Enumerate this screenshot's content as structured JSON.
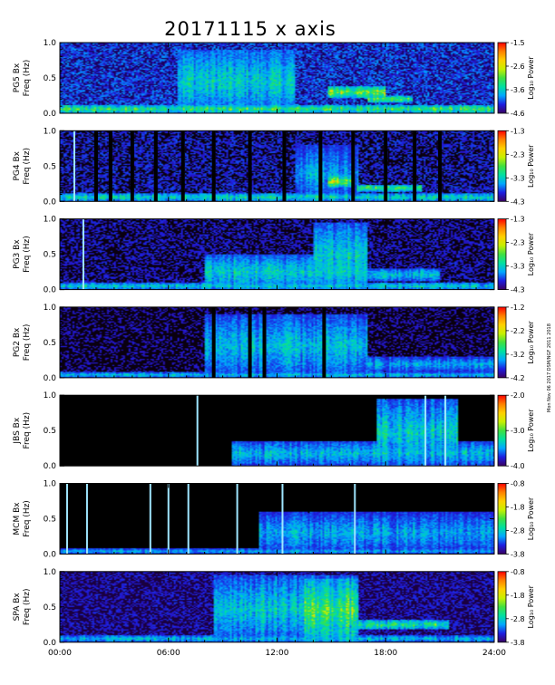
{
  "chart_data": {
    "type": "heatmap",
    "title": "20171115 x axis",
    "x_tick_labels": [
      "00:00",
      "06:00",
      "12:00",
      "18:00",
      "24:00"
    ],
    "x_ticks_hours": [
      0,
      6,
      12,
      18,
      24
    ],
    "xlim_hours": [
      0,
      24
    ],
    "colormap": [
      "#3a0060",
      "#1d1de0",
      "#00a8ff",
      "#00e0a0",
      "#40e040",
      "#c8f000",
      "#ffd000",
      "#ff8000",
      "#ff0000"
    ],
    "side_text": "Mon Nov 06 2017 DSM/NGF 2011 2018",
    "panels": [
      {
        "station": "PG5 Bx",
        "ylabel_line1": "PG5 Bx",
        "ylabel_line2": "Freq (Hz)",
        "ylim_hz": [
          0.0,
          1.0
        ],
        "y_tick_labels": [
          "0.0",
          "0.5",
          "1.0"
        ],
        "y_ticks_hz": [
          0.0,
          0.5,
          1.0
        ],
        "cbar_label": "Log₁₀ Power",
        "cbar_ticks": [
          "-1.5",
          "-2.6",
          "-3.6",
          "-4.6"
        ],
        "cbar_range": [
          -4.6,
          -1.5
        ],
        "background": "#1a0060",
        "base": 0.25,
        "gaps_hours": [],
        "bright_lines_hours": [],
        "bursts": [
          {
            "t0": 0,
            "t1": 24,
            "f0": 0.0,
            "f1": 0.12,
            "level": 0.6
          },
          {
            "t0": 6.5,
            "t1": 13,
            "f0": 0.0,
            "f1": 0.9,
            "level": 0.45
          },
          {
            "t0": 14.8,
            "t1": 18,
            "f0": 0.22,
            "f1": 0.38,
            "level": 0.75
          },
          {
            "t0": 17,
            "t1": 19.5,
            "f0": 0.15,
            "f1": 0.25,
            "level": 0.65
          }
        ]
      },
      {
        "station": "PG4 Bx",
        "ylabel_line1": "PG4 Bx",
        "ylabel_line2": "Freq (Hz)",
        "ylim_hz": [
          0.0,
          1.0
        ],
        "y_tick_labels": [
          "0.0",
          "0.5",
          "1.0"
        ],
        "y_ticks_hz": [
          0.0,
          0.5,
          1.0
        ],
        "cbar_label": "Log₁₀ Power",
        "cbar_ticks": [
          "-1.3",
          "-2.3",
          "-3.3",
          "-4.3"
        ],
        "cbar_range": [
          -4.3,
          -1.3
        ],
        "background": "#0a0010",
        "base": 0.18,
        "gaps_hours": [
          2.0,
          2.8,
          4.0,
          5.3,
          6.8,
          8.5,
          10.5,
          12.4,
          14.4,
          16.2,
          18.0,
          19.6,
          21.0
        ],
        "bright_lines_hours": [
          0.8
        ],
        "bursts": [
          {
            "t0": 0,
            "t1": 24,
            "f0": 0.0,
            "f1": 0.12,
            "level": 0.5
          },
          {
            "t0": 14.8,
            "t1": 16.2,
            "f0": 0.2,
            "f1": 0.36,
            "level": 0.8
          },
          {
            "t0": 16.4,
            "t1": 20,
            "f0": 0.14,
            "f1": 0.24,
            "level": 0.65
          },
          {
            "t0": 13,
            "t1": 16.5,
            "f0": 0.0,
            "f1": 0.8,
            "level": 0.35
          }
        ]
      },
      {
        "station": "PG3 Bx",
        "ylabel_line1": "PG3 Bx",
        "ylabel_line2": "Freq (Hz)",
        "ylim_hz": [
          0.0,
          1.0
        ],
        "y_tick_labels": [
          "0.0",
          "0.5",
          "1.0"
        ],
        "y_ticks_hz": [
          0.0,
          0.5,
          1.0
        ],
        "cbar_label": "Log₁₀ Power",
        "cbar_ticks": [
          "-1.3",
          "-2.3",
          "-3.3",
          "-4.3"
        ],
        "cbar_range": [
          -4.3,
          -1.3
        ],
        "background": "#0a0010",
        "base": 0.15,
        "gaps_hours": [],
        "bright_lines_hours": [
          1.3
        ],
        "bursts": [
          {
            "t0": 0,
            "t1": 24,
            "f0": 0.0,
            "f1": 0.1,
            "level": 0.45
          },
          {
            "t0": 8,
            "t1": 17,
            "f0": 0.0,
            "f1": 0.5,
            "level": 0.45
          },
          {
            "t0": 14,
            "t1": 17,
            "f0": 0.0,
            "f1": 0.95,
            "level": 0.45
          },
          {
            "t0": 16.5,
            "t1": 21,
            "f0": 0.12,
            "f1": 0.3,
            "level": 0.4
          }
        ]
      },
      {
        "station": "PG2 Bx",
        "ylabel_line1": "PG2 Bx",
        "ylabel_line2": "Freq (Hz)",
        "ylim_hz": [
          0.0,
          1.0
        ],
        "y_tick_labels": [
          "0.0",
          "0.5",
          "1.0"
        ],
        "y_ticks_hz": [
          0.0,
          0.5,
          1.0
        ],
        "cbar_label": "Log₁₀ Power",
        "cbar_ticks": [
          "-1.2",
          "-2.2",
          "-3.2",
          "-4.2"
        ],
        "cbar_range": [
          -4.2,
          -1.2
        ],
        "background": "#0a0010",
        "base": 0.12,
        "gaps_hours": [
          8.5,
          10.5,
          11.3,
          14.6
        ],
        "bright_lines_hours": [],
        "bursts": [
          {
            "t0": 0,
            "t1": 24,
            "f0": 0.0,
            "f1": 0.08,
            "level": 0.4
          },
          {
            "t0": 8,
            "t1": 17,
            "f0": 0.0,
            "f1": 0.9,
            "level": 0.4
          },
          {
            "t0": 17,
            "t1": 24,
            "f0": 0.08,
            "f1": 0.3,
            "level": 0.35
          }
        ]
      },
      {
        "station": "JBS Bx",
        "ylabel_line1": "JBS Bx",
        "ylabel_line2": "Freq (Hz)",
        "ylim_hz": [
          0.0,
          1.0
        ],
        "y_tick_labels": [
          "0.0",
          "0.5",
          "1.0"
        ],
        "y_ticks_hz": [
          0.0,
          0.5,
          1.0
        ],
        "cbar_label": "Log₁₀ Power",
        "cbar_ticks": [
          "-2.0",
          "-3.0",
          "-4.0"
        ],
        "cbar_range": [
          -4.0,
          -2.0
        ],
        "background": "#000000",
        "base": 0.05,
        "gaps_hours": [],
        "bright_lines_hours": [
          7.6,
          20.2,
          21.3
        ],
        "bursts": [
          {
            "t0": 9.5,
            "t1": 24,
            "f0": 0.0,
            "f1": 0.35,
            "level": 0.4
          },
          {
            "t0": 17.5,
            "t1": 22,
            "f0": 0.0,
            "f1": 0.95,
            "level": 0.45
          }
        ]
      },
      {
        "station": "MCM Bx",
        "ylabel_line1": "MCM Bx",
        "ylabel_line2": "Freq (Hz)",
        "ylim_hz": [
          0.0,
          1.0
        ],
        "y_tick_labels": [
          "0.0",
          "0.5",
          "1.0"
        ],
        "y_ticks_hz": [
          0.0,
          0.5,
          1.0
        ],
        "cbar_label": "Log₁₀ Power",
        "cbar_ticks": [
          "-0.8",
          "-1.8",
          "-2.8",
          "-3.8"
        ],
        "cbar_range": [
          -3.8,
          -0.8
        ],
        "background": "#000000",
        "base": 0.07,
        "gaps_hours": [],
        "bright_lines_hours": [
          0.4,
          1.5,
          5.0,
          6.0,
          7.1,
          9.8,
          12.3,
          16.3
        ],
        "bursts": [
          {
            "t0": 0,
            "t1": 24,
            "f0": 0.0,
            "f1": 0.08,
            "level": 0.35
          },
          {
            "t0": 11,
            "t1": 24,
            "f0": 0.0,
            "f1": 0.6,
            "level": 0.35
          }
        ]
      },
      {
        "station": "SPA Bx",
        "ylabel_line1": "SPA Bx",
        "ylabel_line2": "Freq (Hz)",
        "ylim_hz": [
          0.0,
          1.0
        ],
        "y_tick_labels": [
          "0.0",
          "0.5",
          "1.0"
        ],
        "y_ticks_hz": [
          0.0,
          0.5,
          1.0
        ],
        "cbar_label": "Log₁₀ Power",
        "cbar_ticks": [
          "-0.8",
          "-1.8",
          "-2.8",
          "-3.8"
        ],
        "cbar_range": [
          -3.8,
          -0.8
        ],
        "background": "#1a0040",
        "base": 0.15,
        "gaps_hours": [],
        "bright_lines_hours": [],
        "bursts": [
          {
            "t0": 0,
            "t1": 24,
            "f0": 0.0,
            "f1": 0.1,
            "level": 0.4
          },
          {
            "t0": 8.5,
            "t1": 16.5,
            "f0": 0.0,
            "f1": 0.95,
            "level": 0.45
          },
          {
            "t0": 13.5,
            "t1": 16.5,
            "f0": 0.0,
            "f1": 0.9,
            "level": 0.65
          },
          {
            "t0": 16.5,
            "t1": 21.5,
            "f0": 0.18,
            "f1": 0.32,
            "level": 0.55
          }
        ]
      }
    ]
  }
}
